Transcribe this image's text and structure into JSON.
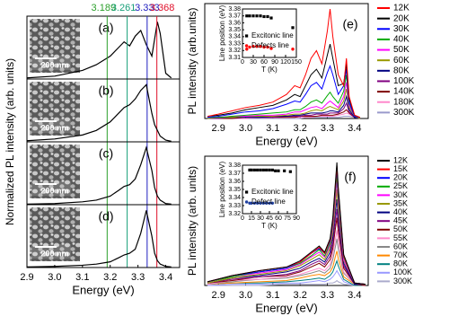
{
  "chart_data": [
    {
      "type": "line",
      "label": "(a)",
      "scale_bar": "200 nm",
      "ylabel": "Normalized PL intensity (arb. units)",
      "color": "#000000",
      "markers": [
        {
          "value": 3.189,
          "color": "#2ca02c"
        },
        {
          "value": 3.261,
          "color": "#1aa07a"
        },
        {
          "value": 3.333,
          "color": "#2020c0"
        },
        {
          "value": 3.368,
          "color": "#e0102a"
        }
      ],
      "x": [
        2.9,
        3.0,
        3.1,
        3.15,
        3.2,
        3.23,
        3.25,
        3.27,
        3.29,
        3.31,
        3.33,
        3.35,
        3.36,
        3.37,
        3.38,
        3.4,
        3.42
      ],
      "values": [
        0.02,
        0.05,
        0.15,
        0.25,
        0.4,
        0.55,
        0.65,
        0.58,
        0.75,
        0.85,
        0.6,
        0.4,
        0.7,
        1.0,
        0.8,
        0.1,
        0.02
      ],
      "xlim": [
        2.9,
        3.45
      ],
      "ylim": [
        0,
        1.1
      ]
    },
    {
      "type": "line",
      "label": "(b)",
      "scale_bar": "200 nm",
      "color": "#000000",
      "x": [
        2.9,
        3.0,
        3.1,
        3.15,
        3.2,
        3.23,
        3.25,
        3.27,
        3.29,
        3.31,
        3.33,
        3.35,
        3.36,
        3.37,
        3.38,
        3.4,
        3.42
      ],
      "values": [
        0.02,
        0.05,
        0.12,
        0.2,
        0.35,
        0.5,
        0.6,
        0.65,
        0.75,
        0.9,
        1.0,
        0.5,
        0.3,
        0.2,
        0.1,
        0.03,
        0.01
      ],
      "xlim": [
        2.9,
        3.45
      ],
      "ylim": [
        0,
        1.1
      ]
    },
    {
      "type": "line",
      "label": "(c)",
      "scale_bar": "200 nm",
      "color": "#000000",
      "x": [
        2.9,
        3.0,
        3.1,
        3.15,
        3.2,
        3.23,
        3.25,
        3.27,
        3.29,
        3.31,
        3.33,
        3.35,
        3.36,
        3.37,
        3.38,
        3.4,
        3.42
      ],
      "values": [
        0.01,
        0.02,
        0.05,
        0.08,
        0.15,
        0.25,
        0.32,
        0.35,
        0.45,
        0.7,
        1.0,
        0.6,
        0.3,
        0.15,
        0.08,
        0.02,
        0.01
      ],
      "xlim": [
        2.9,
        3.45
      ],
      "ylim": [
        0,
        1.1
      ]
    },
    {
      "type": "line",
      "label": "(d)",
      "scale_bar": "200 nm",
      "xlabel": "Energy (eV)",
      "color": "#000000",
      "x": [
        2.9,
        3.0,
        3.1,
        3.15,
        3.2,
        3.23,
        3.25,
        3.27,
        3.29,
        3.31,
        3.33,
        3.35,
        3.36,
        3.37,
        3.38,
        3.4,
        3.42
      ],
      "values": [
        0.01,
        0.02,
        0.04,
        0.06,
        0.1,
        0.17,
        0.22,
        0.25,
        0.32,
        0.6,
        1.0,
        0.55,
        0.25,
        0.12,
        0.06,
        0.02,
        0.01
      ],
      "xlim": [
        2.9,
        3.45
      ],
      "ylim": [
        0,
        1.1
      ],
      "xticks": [
        2.9,
        {
          "value": 3,
          "label": "3.0"
        },
        3.1,
        3.2,
        3.3,
        3.4
      ]
    },
    {
      "type": "line",
      "label": "(e)",
      "xlabel": "Energy (eV)",
      "ylabel": "PL intensity (arb.units)",
      "legend": "outside right",
      "x": [
        2.86,
        2.9,
        2.95,
        3.0,
        3.05,
        3.1,
        3.15,
        3.18,
        3.2,
        3.22,
        3.24,
        3.26,
        3.28,
        3.3,
        3.31,
        3.32,
        3.34,
        3.36,
        3.37,
        3.38,
        3.4,
        3.42
      ],
      "series": [
        {
          "name": "12K",
          "color": "#ff0000",
          "values": [
            0.02,
            0.04,
            0.07,
            0.1,
            0.12,
            0.15,
            0.22,
            0.3,
            0.28,
            0.4,
            0.55,
            0.62,
            0.5,
            0.8,
            1.0,
            0.75,
            0.4,
            0.3,
            0.55,
            0.2,
            0.03,
            0.01
          ]
        },
        {
          "name": "20K",
          "color": "#000000",
          "values": [
            0.02,
            0.03,
            0.05,
            0.08,
            0.1,
            0.12,
            0.17,
            0.22,
            0.2,
            0.3,
            0.4,
            0.45,
            0.37,
            0.58,
            0.68,
            0.55,
            0.3,
            0.32,
            0.5,
            0.18,
            0.03,
            0.01
          ]
        },
        {
          "name": "30K",
          "color": "#0000ff",
          "values": [
            0.01,
            0.02,
            0.04,
            0.06,
            0.07,
            0.09,
            0.13,
            0.16,
            0.15,
            0.22,
            0.3,
            0.33,
            0.27,
            0.42,
            0.48,
            0.4,
            0.22,
            0.3,
            0.45,
            0.15,
            0.02,
            0.01
          ]
        },
        {
          "name": "40K",
          "color": "#00aa00",
          "values": [
            0.01,
            0.01,
            0.02,
            0.03,
            0.04,
            0.05,
            0.06,
            0.08,
            0.08,
            0.11,
            0.15,
            0.17,
            0.14,
            0.21,
            0.24,
            0.2,
            0.14,
            0.25,
            0.4,
            0.14,
            0.02,
            0.01
          ]
        },
        {
          "name": "50K",
          "color": "#ff00ff",
          "values": [
            0.01,
            0.01,
            0.02,
            0.02,
            0.03,
            0.03,
            0.04,
            0.06,
            0.06,
            0.08,
            0.1,
            0.11,
            0.09,
            0.14,
            0.16,
            0.14,
            0.1,
            0.2,
            0.33,
            0.12,
            0.02,
            0.01
          ]
        },
        {
          "name": "60K",
          "color": "#999900",
          "values": [
            0,
            0.01,
            0.01,
            0.02,
            0.02,
            0.02,
            0.03,
            0.04,
            0.04,
            0.05,
            0.07,
            0.08,
            0.07,
            0.1,
            0.11,
            0.1,
            0.08,
            0.16,
            0.27,
            0.1,
            0.02,
            0
          ]
        },
        {
          "name": "80K",
          "color": "#000080",
          "values": [
            0,
            0.01,
            0.01,
            0.01,
            0.01,
            0.02,
            0.02,
            0.03,
            0.03,
            0.04,
            0.05,
            0.05,
            0.05,
            0.06,
            0.07,
            0.07,
            0.06,
            0.12,
            0.2,
            0.08,
            0.01,
            0
          ]
        },
        {
          "name": "100K",
          "color": "#800080",
          "values": [
            0,
            0,
            0.01,
            0.01,
            0.01,
            0.01,
            0.02,
            0.02,
            0.02,
            0.03,
            0.03,
            0.04,
            0.04,
            0.04,
            0.05,
            0.05,
            0.05,
            0.09,
            0.14,
            0.06,
            0.01,
            0
          ]
        },
        {
          "name": "140K",
          "color": "#800000",
          "values": [
            0,
            0,
            0,
            0.01,
            0.01,
            0.01,
            0.01,
            0.01,
            0.02,
            0.02,
            0.02,
            0.02,
            0.03,
            0.03,
            0.03,
            0.03,
            0.04,
            0.06,
            0.08,
            0.05,
            0.01,
            0
          ]
        },
        {
          "name": "180K",
          "color": "#ff88cc",
          "values": [
            0,
            0,
            0,
            0,
            0.01,
            0.01,
            0.01,
            0.01,
            0.01,
            0.01,
            0.01,
            0.02,
            0.02,
            0.02,
            0.02,
            0.02,
            0.03,
            0.04,
            0.05,
            0.04,
            0.01,
            0
          ]
        },
        {
          "name": "300K",
          "color": "#9999cc",
          "values": [
            0,
            0,
            0,
            0,
            0,
            0,
            0,
            0,
            0,
            0.01,
            0.01,
            0.01,
            0.01,
            0.01,
            0.01,
            0.01,
            0.01,
            0.02,
            0.02,
            0.02,
            0.01,
            0
          ]
        }
      ],
      "xlim": [
        2.85,
        3.45
      ],
      "ylim": [
        0,
        1.05
      ],
      "xticks": [
        2.9,
        {
          "value": 3,
          "label": "3.0"
        },
        3.1,
        3.2,
        3.3,
        3.4
      ]
    },
    {
      "type": "scatter",
      "xlabel": "T (K)",
      "ylabel": "Line position (eV)",
      "legend": "inside",
      "series": [
        {
          "name": "Excitonic line",
          "color": "#000000",
          "marker": "square",
          "x": [
            12,
            20,
            30,
            40,
            50,
            60,
            70,
            80,
            140
          ],
          "values": [
            3.37,
            3.37,
            3.37,
            3.37,
            3.37,
            3.369,
            3.369,
            3.367,
            3.353
          ]
        },
        {
          "name": "Defects line",
          "color": "#ff0000",
          "marker": "circle",
          "x": [
            12,
            20,
            30,
            40,
            50,
            60,
            70,
            80,
            140
          ],
          "values": [
            3.322,
            3.325,
            3.326,
            3.326,
            3.326,
            3.325,
            3.325,
            3.323,
            3.322
          ]
        }
      ],
      "xlim": [
        0,
        150
      ],
      "ylim": [
        3.31,
        3.38
      ],
      "xticks": [
        0,
        30,
        60,
        90,
        120,
        150
      ],
      "yticks": [
        3.31,
        3.32,
        3.33,
        3.34,
        3.35,
        3.36,
        3.37,
        3.38
      ]
    },
    {
      "type": "line",
      "label": "(f)",
      "xlabel": "Energy (eV)",
      "ylabel": "PL intensity (arb. units)",
      "legend": "outside right",
      "x": [
        2.86,
        2.95,
        3.05,
        3.15,
        3.2,
        3.24,
        3.27,
        3.29,
        3.31,
        3.32,
        3.33,
        3.335,
        3.34,
        3.36,
        3.4,
        3.44
      ],
      "series": [
        {
          "name": "12K",
          "color": "#000000",
          "values": [
            0.03,
            0.08,
            0.12,
            0.15,
            0.2,
            0.27,
            0.32,
            0.27,
            0.38,
            0.55,
            0.85,
            1.0,
            0.8,
            0.25,
            0.02,
            0.01
          ]
        },
        {
          "name": "15K",
          "color": "#ff0000",
          "values": [
            0.03,
            0.08,
            0.12,
            0.15,
            0.19,
            0.26,
            0.31,
            0.26,
            0.37,
            0.53,
            0.82,
            0.97,
            0.78,
            0.24,
            0.02,
            0.01
          ]
        },
        {
          "name": "20K",
          "color": "#0000ff",
          "values": [
            0.03,
            0.08,
            0.11,
            0.14,
            0.19,
            0.26,
            0.3,
            0.26,
            0.36,
            0.52,
            0.81,
            0.95,
            0.76,
            0.24,
            0.02,
            0.01
          ]
        },
        {
          "name": "25K",
          "color": "#00aa00",
          "values": [
            0.03,
            0.07,
            0.11,
            0.14,
            0.18,
            0.24,
            0.29,
            0.24,
            0.34,
            0.5,
            0.77,
            0.9,
            0.72,
            0.23,
            0.02,
            0.01
          ]
        },
        {
          "name": "30K",
          "color": "#ff00ff",
          "values": [
            0.03,
            0.07,
            0.1,
            0.13,
            0.17,
            0.23,
            0.27,
            0.23,
            0.32,
            0.47,
            0.72,
            0.85,
            0.68,
            0.21,
            0.02,
            0.01
          ]
        },
        {
          "name": "35K",
          "color": "#999900",
          "values": [
            0.02,
            0.06,
            0.09,
            0.12,
            0.16,
            0.21,
            0.25,
            0.21,
            0.3,
            0.43,
            0.66,
            0.78,
            0.62,
            0.2,
            0.02,
            0.01
          ]
        },
        {
          "name": "40K",
          "color": "#000080",
          "values": [
            0.02,
            0.06,
            0.08,
            0.11,
            0.14,
            0.19,
            0.22,
            0.19,
            0.27,
            0.39,
            0.6,
            0.7,
            0.56,
            0.18,
            0.01,
            0.01
          ]
        },
        {
          "name": "45K",
          "color": "#800080",
          "values": [
            0.02,
            0.05,
            0.07,
            0.09,
            0.12,
            0.17,
            0.2,
            0.17,
            0.24,
            0.34,
            0.53,
            0.62,
            0.5,
            0.16,
            0.01,
            0.01
          ]
        },
        {
          "name": "50K",
          "color": "#800000",
          "values": [
            0.02,
            0.04,
            0.07,
            0.08,
            0.11,
            0.15,
            0.18,
            0.15,
            0.21,
            0.3,
            0.47,
            0.55,
            0.44,
            0.14,
            0.01,
            0
          ]
        },
        {
          "name": "55K",
          "color": "#ff88cc",
          "values": [
            0.01,
            0.04,
            0.05,
            0.07,
            0.09,
            0.12,
            0.14,
            0.12,
            0.17,
            0.25,
            0.38,
            0.45,
            0.36,
            0.11,
            0.01,
            0
          ]
        },
        {
          "name": "60K",
          "color": "#888888",
          "values": [
            0.01,
            0.03,
            0.05,
            0.06,
            0.08,
            0.1,
            0.12,
            0.1,
            0.14,
            0.21,
            0.32,
            0.38,
            0.3,
            0.1,
            0.01,
            0
          ]
        },
        {
          "name": "70K",
          "color": "#ff8800",
          "values": [
            0.01,
            0.02,
            0.03,
            0.04,
            0.06,
            0.08,
            0.09,
            0.08,
            0.11,
            0.15,
            0.24,
            0.28,
            0.22,
            0.07,
            0.01,
            0
          ]
        },
        {
          "name": "80K",
          "color": "#008080",
          "values": [
            0.01,
            0.02,
            0.02,
            0.03,
            0.04,
            0.05,
            0.06,
            0.05,
            0.08,
            0.11,
            0.17,
            0.2,
            0.16,
            0.05,
            0,
            0
          ]
        },
        {
          "name": "100K",
          "color": "#9999ff",
          "values": [
            0,
            0.01,
            0.01,
            0.02,
            0.02,
            0.03,
            0.04,
            0.03,
            0.05,
            0.07,
            0.1,
            0.12,
            0.1,
            0.03,
            0,
            0
          ]
        },
        {
          "name": "300K",
          "color": "#aaaacc",
          "values": [
            0,
            0,
            0,
            0.01,
            0.01,
            0.01,
            0.01,
            0.01,
            0.02,
            0.02,
            0.03,
            0.04,
            0.03,
            0.01,
            0,
            0
          ]
        }
      ],
      "xlim": [
        2.85,
        3.45
      ],
      "ylim": [
        0,
        1.05
      ],
      "xticks": [
        2.9,
        {
          "value": 3,
          "label": "3.0"
        },
        3.1,
        3.2,
        3.3,
        3.4
      ]
    },
    {
      "type": "scatter",
      "xlabel": "T (K)",
      "ylabel": "Line position (eV)",
      "legend": "inside",
      "series": [
        {
          "name": "Excitonic line",
          "color": "#000000",
          "marker": "square",
          "x": [
            12,
            15,
            20,
            25,
            30,
            35,
            40,
            45,
            50,
            55,
            60,
            70,
            80
          ],
          "values": [
            3.374,
            3.374,
            3.374,
            3.374,
            3.374,
            3.374,
            3.374,
            3.374,
            3.374,
            3.373,
            3.373,
            3.373,
            3.372
          ]
        },
        {
          "name": "Defect line",
          "color": "#2040a0",
          "marker": "circle",
          "x": [
            12,
            15,
            20,
            25,
            30,
            35,
            40,
            45,
            50
          ],
          "values": [
            3.333,
            3.333,
            3.333,
            3.333,
            3.333,
            3.333,
            3.333,
            3.333,
            3.333
          ]
        }
      ],
      "xlim": [
        0,
        90
      ],
      "ylim": [
        3.32,
        3.38
      ],
      "xticks": [
        0,
        15,
        30,
        45,
        60,
        75,
        90
      ],
      "yticks": [
        3.32,
        3.33,
        3.34,
        3.35,
        3.36,
        3.37,
        3.38
      ]
    }
  ]
}
